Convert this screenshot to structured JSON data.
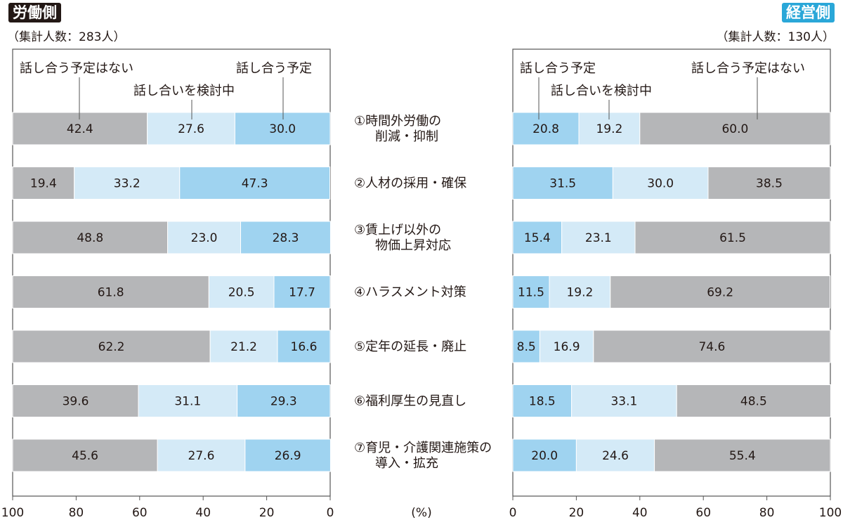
{
  "header": {
    "left_badge": "労働側",
    "left_count": "（集計人数：283人）",
    "right_badge": "経営側",
    "right_count": "（集計人数：130人）"
  },
  "colors": {
    "none": "#b5b6b8",
    "consider": "#d4eaf7",
    "planned": "#9fd3f0",
    "frame": "#555555",
    "text": "#231815"
  },
  "chart_data": {
    "type": "bar",
    "title": "",
    "unit_label": "(%)",
    "categories": [
      "①時間外労働の\n削減・抑制",
      "②人材の採用・確保",
      "③賃上げ以外の\n物価上昇対応",
      "④ハラスメント対策",
      "⑤定年の延長・廃止",
      "⑥福利厚生の見直し",
      "⑦育児・介護関連施策の\n導入・拡充"
    ],
    "series_names": {
      "none": "話し合う予定はない",
      "consider": "話し合いを検討中",
      "planned": "話し合う予定"
    },
    "labor": {
      "group": "労働側",
      "axis_ticks": [
        "100",
        "80",
        "60",
        "40",
        "20",
        "0"
      ],
      "xlim": [
        100,
        0
      ],
      "none": [
        42.4,
        19.4,
        48.8,
        61.8,
        62.2,
        39.6,
        45.6
      ],
      "consider": [
        27.6,
        33.2,
        23.0,
        20.5,
        21.2,
        31.1,
        27.6
      ],
      "planned": [
        30.0,
        47.3,
        28.3,
        17.7,
        16.6,
        29.3,
        26.9
      ]
    },
    "management": {
      "group": "経営側",
      "axis_ticks": [
        "0",
        "20",
        "40",
        "60",
        "80",
        "100"
      ],
      "xlim": [
        0,
        100
      ],
      "planned": [
        20.8,
        31.5,
        15.4,
        11.5,
        8.5,
        18.5,
        20.0
      ],
      "consider": [
        19.2,
        30.0,
        23.1,
        19.2,
        16.9,
        33.1,
        24.6
      ],
      "none": [
        60.0,
        38.5,
        61.5,
        69.2,
        74.6,
        48.5,
        55.4
      ]
    }
  }
}
